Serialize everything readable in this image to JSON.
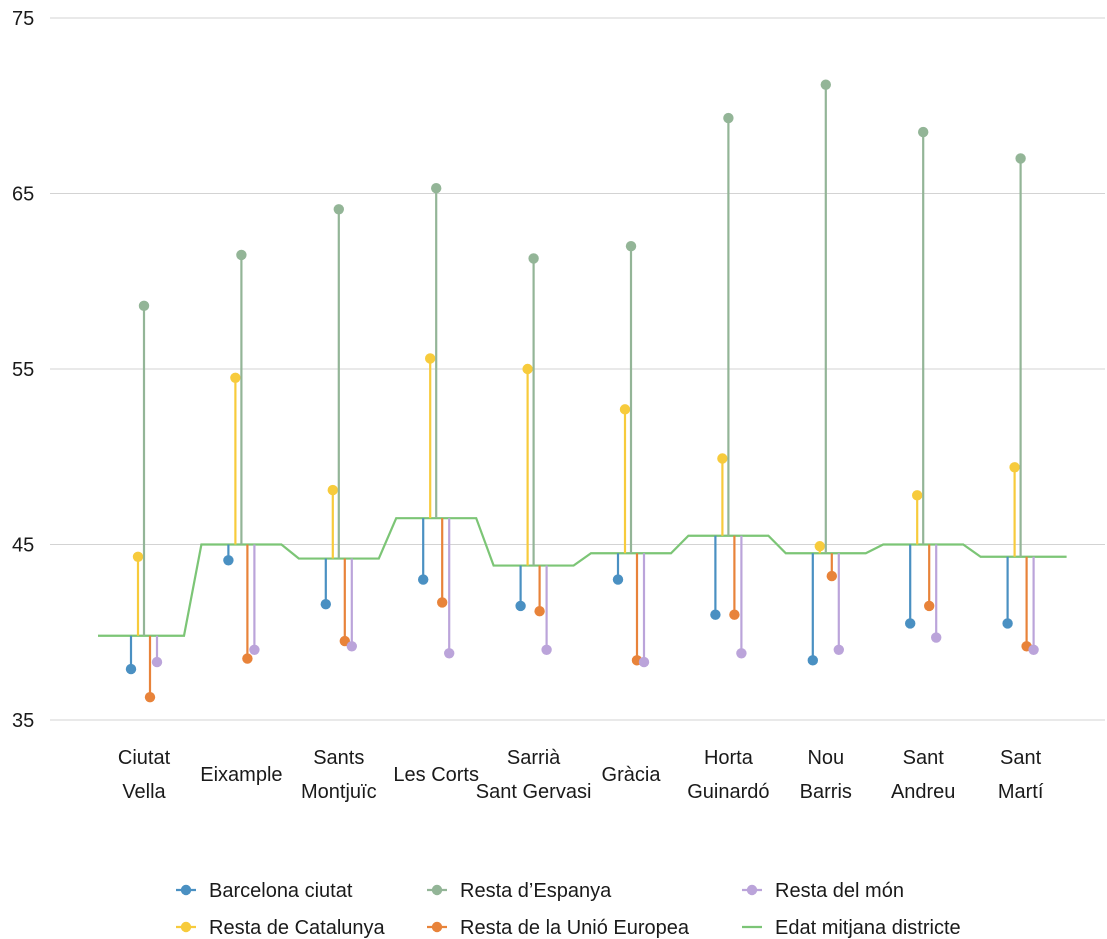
{
  "chart_data": {
    "type": "lollipop",
    "title": "",
    "xlabel": "",
    "ylabel": "",
    "ylim": [
      35,
      75
    ],
    "yticks": [
      35,
      45,
      55,
      65,
      75
    ],
    "grid": true,
    "legend_position": "bottom",
    "categories": [
      [
        "Ciutat",
        "Vella"
      ],
      [
        "Eixample"
      ],
      [
        "Sants",
        "Montjuïc"
      ],
      [
        "Les Corts"
      ],
      [
        "Sarrià",
        "Sant Gervasi"
      ],
      [
        "Gràcia"
      ],
      [
        "Horta",
        "Guinardó"
      ],
      [
        "Nou",
        "Barris"
      ],
      [
        "Sant",
        "Andreu"
      ],
      [
        "Sant",
        "Martí"
      ]
    ],
    "mean_line": {
      "name": "Edat mitjana districte",
      "color": "#7cc576",
      "values": [
        39.8,
        45.0,
        44.2,
        46.5,
        43.8,
        44.5,
        45.5,
        44.5,
        45.0,
        44.3
      ]
    },
    "series": [
      {
        "name": "Barcelona ciutat",
        "color": "#4a90c2",
        "values": [
          37.9,
          44.1,
          41.6,
          43.0,
          41.5,
          43.0,
          41.0,
          38.4,
          40.5,
          40.5
        ]
      },
      {
        "name": "Resta de Catalunya",
        "color": "#f7cb3c",
        "values": [
          44.3,
          54.5,
          48.1,
          55.6,
          55.0,
          52.7,
          49.9,
          44.9,
          47.8,
          49.4
        ]
      },
      {
        "name": "Resta d’Espanya",
        "color": "#93b597",
        "values": [
          58.6,
          61.5,
          64.1,
          65.3,
          61.3,
          62.0,
          69.3,
          71.2,
          68.5,
          67.0
        ]
      },
      {
        "name": "Resta de la Unió Europea",
        "color": "#e8833a",
        "values": [
          36.3,
          38.5,
          39.5,
          41.7,
          41.2,
          38.4,
          41.0,
          43.2,
          41.5,
          39.2
        ]
      },
      {
        "name": "Resta del món",
        "color": "#bba4da",
        "values": [
          38.3,
          39.0,
          39.2,
          38.8,
          39.0,
          38.3,
          38.8,
          39.0,
          39.7,
          39.0
        ]
      }
    ],
    "legend": {
      "rows": [
        [
          "Barcelona ciutat",
          "Resta d’Espanya",
          "Resta del món"
        ],
        [
          "Resta de Catalunya",
          "Resta de la Unió Europea",
          "Edat mitjana districte"
        ]
      ]
    }
  }
}
